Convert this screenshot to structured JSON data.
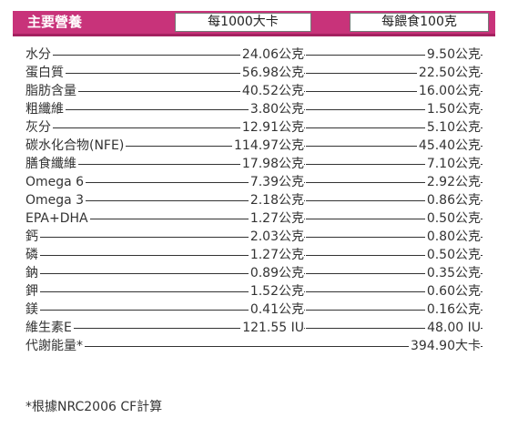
{
  "header": {
    "title": "主要營養",
    "col1": "每1000大卡",
    "col2": "每餵食100克"
  },
  "nutrients": [
    {
      "name": "水分",
      "per1000": "24.06公克",
      "per100": "9.50公克"
    },
    {
      "name": "蛋白質",
      "per1000": "56.98公克",
      "per100": "22.50公克"
    },
    {
      "name": "脂肪含量",
      "per1000": "40.52公克",
      "per100": "16.00公克"
    },
    {
      "name": "粗纖維",
      "per1000": "3.80公克",
      "per100": "1.50公克"
    },
    {
      "name": "灰分",
      "per1000": "12.91公克",
      "per100": "5.10公克"
    },
    {
      "name": "碳水化合物(NFE)",
      "per1000": "114.97公克",
      "per100": "45.40公克"
    },
    {
      "name": "膳食纖維",
      "per1000": "17.98公克",
      "per100": "7.10公克"
    },
    {
      "name": "Omega 6",
      "per1000": "7.39公克",
      "per100": "2.92公克"
    },
    {
      "name": "Omega 3",
      "per1000": "2.18公克",
      "per100": "0.86公克"
    },
    {
      "name": "EPA+DHA",
      "per1000": "1.27公克",
      "per100": "0.50公克"
    },
    {
      "name": "鈣",
      "per1000": "2.03公克",
      "per100": "0.80公克"
    },
    {
      "name": "磷",
      "per1000": "1.27公克",
      "per100": "0.50公克"
    },
    {
      "name": "鈉",
      "per1000": "0.89公克",
      "per100": "0.35公克"
    },
    {
      "name": "鉀",
      "per1000": "1.52公克",
      "per100": "0.60公克"
    },
    {
      "name": "鎂",
      "per1000": "0.41公克",
      "per100": "0.16公克"
    },
    {
      "name": "維生素E",
      "per1000": "121.55 IU",
      "per100": "48.00 IU"
    }
  ],
  "energy": {
    "name": "代謝能量*",
    "value": "394.90大卡"
  },
  "footnote": "*根據NRC2006 CF計算",
  "colors": {
    "header_bg": "#c8337a",
    "header_underline": "#a42160"
  }
}
